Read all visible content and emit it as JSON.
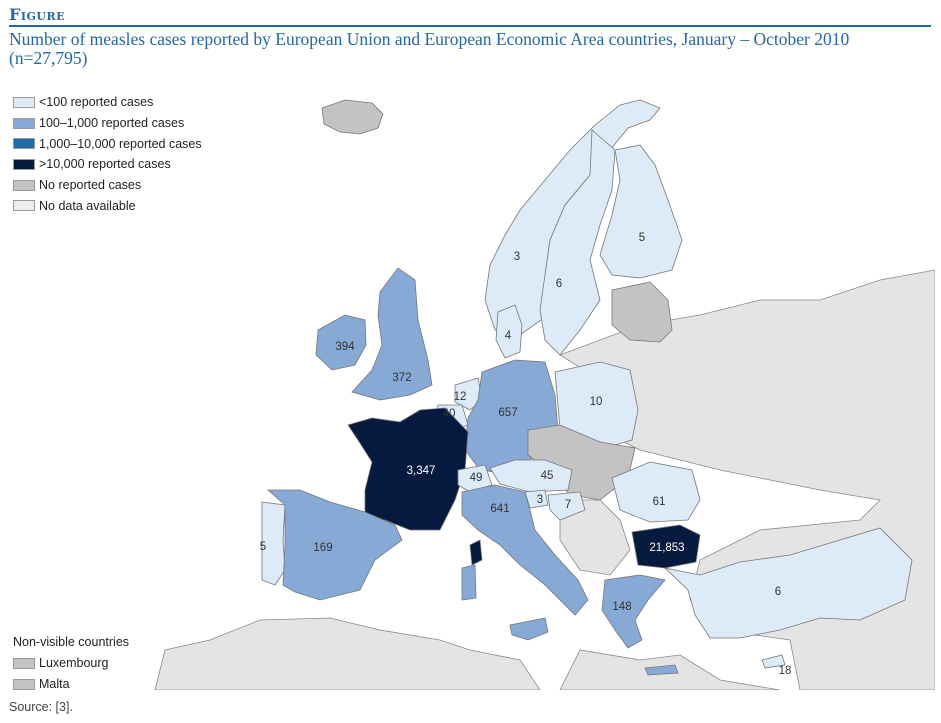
{
  "figure_label": "Figure",
  "title": "Number of measles cases reported by European Union and European Economic Area countries, January – October 2010 (n=27,795)",
  "legend": [
    {
      "label": "<100 reported cases",
      "color": "#dcebf7"
    },
    {
      "label": "100–1,000 reported cases",
      "color": "#86a9d6"
    },
    {
      "label": "1,000–10,000 reported cases",
      "color": "#1f6aa8"
    },
    {
      "label": ">10,000 reported cases",
      "color": "#06193f"
    },
    {
      "label": "No reported cases",
      "color": "#c3c3c3"
    },
    {
      "label": "No data available",
      "color": "#eeeeee"
    }
  ],
  "non_visible": {
    "title": "Non-visible countries",
    "items": [
      {
        "label": "Luxembourg",
        "color": "#c3c3c3"
      },
      {
        "label": "Malta",
        "color": "#c3c3c3"
      }
    ]
  },
  "source": "Source: [3].",
  "map_colors": {
    "sea": "#ffffff",
    "non_eu_land": "#e4e4e4",
    "border": "#777777"
  },
  "countries": {
    "iceland": {
      "category": "No reported cases"
    },
    "norway": {
      "value": "3",
      "category": "<100 reported cases"
    },
    "sweden": {
      "value": "6",
      "category": "<100 reported cases"
    },
    "finland": {
      "value": "5",
      "category": "<100 reported cases"
    },
    "denmark": {
      "value": "4",
      "category": "<100 reported cases"
    },
    "ireland": {
      "value": "394",
      "category": "100–1,000 reported cases"
    },
    "uk": {
      "value": "372",
      "category": "100–1,000 reported cases"
    },
    "netherlands": {
      "value": "12",
      "category": "<100 reported cases"
    },
    "belgium": {
      "value": "40",
      "category": "<100 reported cases"
    },
    "germany": {
      "value": "657",
      "category": "100–1,000 reported cases"
    },
    "poland": {
      "value": "10",
      "category": "<100 reported cases"
    },
    "france": {
      "value": "3,347",
      "category": "1,000–10,000 reported cases"
    },
    "switzerland": {
      "value": "49",
      "category": "<100 reported cases"
    },
    "austria": {
      "value": "45",
      "category": "<100 reported cases"
    },
    "slovenia": {
      "value": "3",
      "category": "<100 reported cases"
    },
    "croatia": {
      "value": "7",
      "category": "<100 reported cases"
    },
    "italy": {
      "value": "641",
      "category": "100–1,000 reported cases"
    },
    "romania": {
      "value": "61",
      "category": "<100 reported cases"
    },
    "bulgaria": {
      "value": "21,853",
      "category": ">10,000 reported cases"
    },
    "portugal": {
      "value": "5",
      "category": "<100 reported cases"
    },
    "spain": {
      "value": "169",
      "category": "100–1,000 reported cases"
    },
    "greece": {
      "value": "148",
      "category": "100–1,000 reported cases"
    },
    "turkey": {
      "value": "6",
      "category": "<100 reported cases"
    },
    "cyprus": {
      "value": "18",
      "category": "<100 reported cases"
    },
    "baltics": {
      "category": "No reported cases"
    },
    "czech_slovakia_hungary": {
      "category": "No reported cases"
    }
  }
}
